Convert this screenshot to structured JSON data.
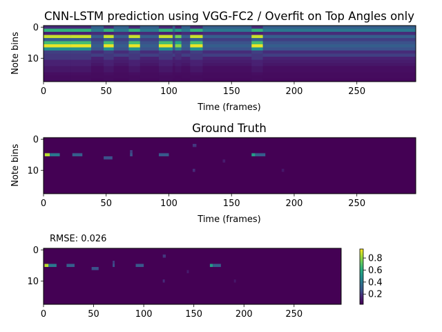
{
  "chart_data": [
    {
      "type": "heatmap",
      "title": "CNN-LSTM prediction using VGG-FC2 / Overfit on Top Angles only",
      "xlabel": "Time (frames)",
      "ylabel": "Note bins",
      "xlim": [
        0,
        297
      ],
      "ylim": [
        17.5,
        -0.5
      ],
      "xticks": [
        "0",
        "50",
        "100",
        "150",
        "200",
        "250"
      ],
      "yticks": [
        "0",
        "10"
      ],
      "colormap": "viridis",
      "rows": 18,
      "row_profile": [
        0.15,
        0.65,
        0.12,
        0.92,
        0.3,
        0.7,
        0.97,
        0.5,
        0.2,
        0.18,
        0.18,
        0.12,
        0.12,
        0.08,
        0.08,
        0.05,
        0.04,
        0.04
      ],
      "background_rows": [
        0.3,
        0.4,
        0.15,
        0.3,
        0.2,
        0.25,
        0.3,
        0.25,
        0.15,
        0.2,
        0.12,
        0.1,
        0.08,
        0.05,
        0.05,
        0.04,
        0.04,
        0.03
      ],
      "active_segments": [
        [
          0,
          22
        ],
        [
          22,
          38
        ],
        [
          48,
          56
        ],
        [
          68,
          77
        ],
        [
          92,
          103
        ],
        [
          105,
          110
        ],
        [
          117,
          127
        ],
        [
          166,
          175
        ]
      ],
      "segment_strength": [
        1.0,
        1.0,
        1.0,
        1.0,
        1.0,
        0.85,
        1.0,
        1.0
      ]
    },
    {
      "type": "heatmap",
      "title": "Ground Truth",
      "xlabel": "Time (frames)",
      "ylabel": "Note bins",
      "xlim": [
        0,
        297
      ],
      "ylim": [
        17.5,
        -0.5
      ],
      "xticks": [
        "0",
        "50",
        "100",
        "150",
        "200",
        "250"
      ],
      "yticks": [
        "0",
        "10"
      ],
      "colormap": "viridis",
      "rows": 18,
      "events": [
        {
          "x": 1,
          "w": 4,
          "row": 5,
          "v": 0.9
        },
        {
          "x": 5,
          "w": 8,
          "row": 5,
          "v": 0.4
        },
        {
          "x": 23,
          "w": 8,
          "row": 5,
          "v": 0.3
        },
        {
          "x": 48,
          "w": 7,
          "row": 6,
          "v": 0.25
        },
        {
          "x": 69,
          "w": 2,
          "row": 4,
          "v": 0.2
        },
        {
          "x": 69,
          "w": 2,
          "row": 5,
          "v": 0.25
        },
        {
          "x": 92,
          "w": 8,
          "row": 5,
          "v": 0.28
        },
        {
          "x": 119,
          "w": 3,
          "row": 2,
          "v": 0.18
        },
        {
          "x": 119,
          "w": 2,
          "row": 10,
          "v": 0.15
        },
        {
          "x": 143,
          "w": 2,
          "row": 7,
          "v": 0.1
        },
        {
          "x": 166,
          "w": 3,
          "row": 5,
          "v": 0.55
        },
        {
          "x": 169,
          "w": 8,
          "row": 5,
          "v": 0.3
        },
        {
          "x": 190,
          "w": 2,
          "row": 10,
          "v": 0.08
        }
      ]
    },
    {
      "type": "heatmap",
      "title": "RMSE: 0.026",
      "xlim": [
        0,
        297
      ],
      "ylim": [
        17.5,
        -0.5
      ],
      "xticks": [
        "0",
        "50",
        "100",
        "150",
        "200",
        "250"
      ],
      "yticks": [
        "0",
        "10"
      ],
      "colormap": "viridis",
      "rows": 18,
      "source": "difference",
      "colorbar": {
        "min": 0.03,
        "max": 0.95,
        "ticks": [
          "0.8",
          "0.6",
          "0.4",
          "0.2"
        ],
        "tick_values": [
          0.8,
          0.6,
          0.4,
          0.2
        ]
      }
    }
  ]
}
